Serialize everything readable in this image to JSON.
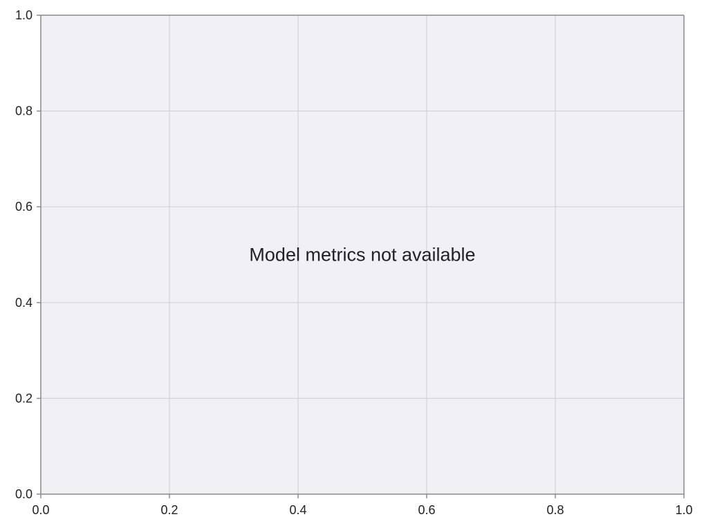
{
  "chart_data": {
    "type": "line",
    "title": "",
    "xlabel": "",
    "ylabel": "",
    "xlim": [
      0.0,
      1.0
    ],
    "ylim": [
      0.0,
      1.0
    ],
    "x_ticks": [
      "0.0",
      "0.2",
      "0.4",
      "0.6",
      "0.8",
      "1.0"
    ],
    "y_ticks": [
      "0.0",
      "0.2",
      "0.4",
      "0.6",
      "0.8",
      "1.0"
    ],
    "series": [],
    "annotation": {
      "text": "Model metrics not available",
      "x": 0.5,
      "y": 0.5
    },
    "grid": true
  },
  "colors": {
    "plot_background": "#f1f0f5",
    "grid": "#d3d2d8",
    "spine": "#8a8a90",
    "text": "#222226"
  }
}
